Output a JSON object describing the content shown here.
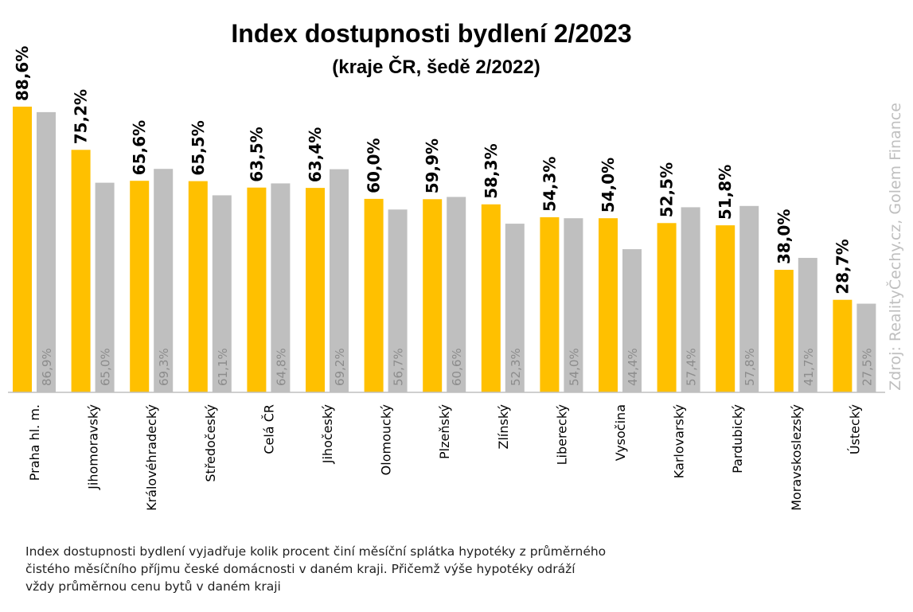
{
  "chart_data": {
    "type": "bar",
    "title": "Index dostupnosti bydlení 2/2023",
    "subtitle": "(kraje ČR, šedě 2/2022)",
    "source": "Zdroj: RealityČechy.cz, Golem Finance",
    "categories": [
      "Praha hl. m.",
      "Jihomoravský",
      "Královéhradecký",
      "Středočeský",
      "Celá ČR",
      "Jihočeský",
      "Olomoucký",
      "Plzeňský",
      "Zlínský",
      "Liberecký",
      "Vysočina",
      "Karlovarský",
      "Pardubický",
      "Moravskoslezský",
      "Ústecký"
    ],
    "series": [
      {
        "color": "#FFC000",
        "values": [
          88.6,
          75.2,
          65.6,
          65.5,
          63.5,
          63.4,
          60.0,
          59.9,
          58.3,
          54.3,
          54.0,
          52.5,
          51.8,
          38.0,
          28.7
        ],
        "labels": [
          "88,6%",
          "75,2%",
          "65,6%",
          "65,5%",
          "63,5%",
          "63,4%",
          "60,0%",
          "59,9%",
          "58,3%",
          "54,3%",
          "54,0%",
          "52,5%",
          "51,8%",
          "38,0%",
          "28,7%"
        ]
      },
      {
        "color": "#BFBFBF",
        "values": [
          86.9,
          65.0,
          69.3,
          61.1,
          64.8,
          69.2,
          56.7,
          60.6,
          52.3,
          54.0,
          44.4,
          57.4,
          57.8,
          41.7,
          27.5
        ],
        "labels": [
          "86,9%",
          "65,0%",
          "69,3%",
          "61,1%",
          "64,8%",
          "69,2%",
          "56,7%",
          "60,6%",
          "52,3%",
          "54,0%",
          "44,4%",
          "57,4%",
          "57,8%",
          "41,7%",
          "27,5%"
        ]
      }
    ],
    "ylim": [
      0,
      100
    ],
    "grid": false,
    "legend": "none"
  },
  "footnote": {
    "line1": "Index dostupnosti bydlení vyjadřuje kolik procent činí měsíční splátka hypotéky z průměrného",
    "line2": "čistého měsíčního příjmu české domácnosti v daném kraji. Přičemž výše hypotéky odráží",
    "line3": "vždy průměrnou cenu bytů v daném kraji"
  }
}
